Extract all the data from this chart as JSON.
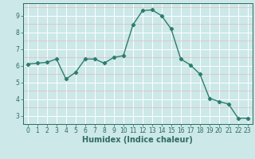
{
  "x": [
    0,
    1,
    2,
    3,
    4,
    5,
    6,
    7,
    8,
    9,
    10,
    11,
    12,
    13,
    14,
    15,
    16,
    17,
    18,
    19,
    20,
    21,
    22,
    23
  ],
  "y": [
    6.1,
    6.15,
    6.2,
    6.4,
    5.2,
    5.6,
    6.4,
    6.4,
    6.15,
    6.5,
    6.6,
    8.45,
    9.3,
    9.35,
    9.0,
    8.2,
    6.4,
    6.05,
    5.5,
    4.05,
    3.85,
    3.7,
    2.85,
    2.85
  ],
  "line_color": "#2e7d6e",
  "marker": "D",
  "marker_size": 2.2,
  "bg_color": "#cce8e8",
  "grid_color_major": "#ffffff",
  "grid_color_minor": "#e8b0b0",
  "xlabel": "Humidex (Indice chaleur)",
  "ylim": [
    2.5,
    9.75
  ],
  "xlim": [
    -0.5,
    23.5
  ],
  "yticks": [
    3,
    4,
    5,
    6,
    7,
    8,
    9
  ],
  "xticks": [
    0,
    1,
    2,
    3,
    4,
    5,
    6,
    7,
    8,
    9,
    10,
    11,
    12,
    13,
    14,
    15,
    16,
    17,
    18,
    19,
    20,
    21,
    22,
    23
  ],
  "tick_label_fontsize": 5.5,
  "xlabel_fontsize": 7.0,
  "axis_color": "#2e6b60"
}
